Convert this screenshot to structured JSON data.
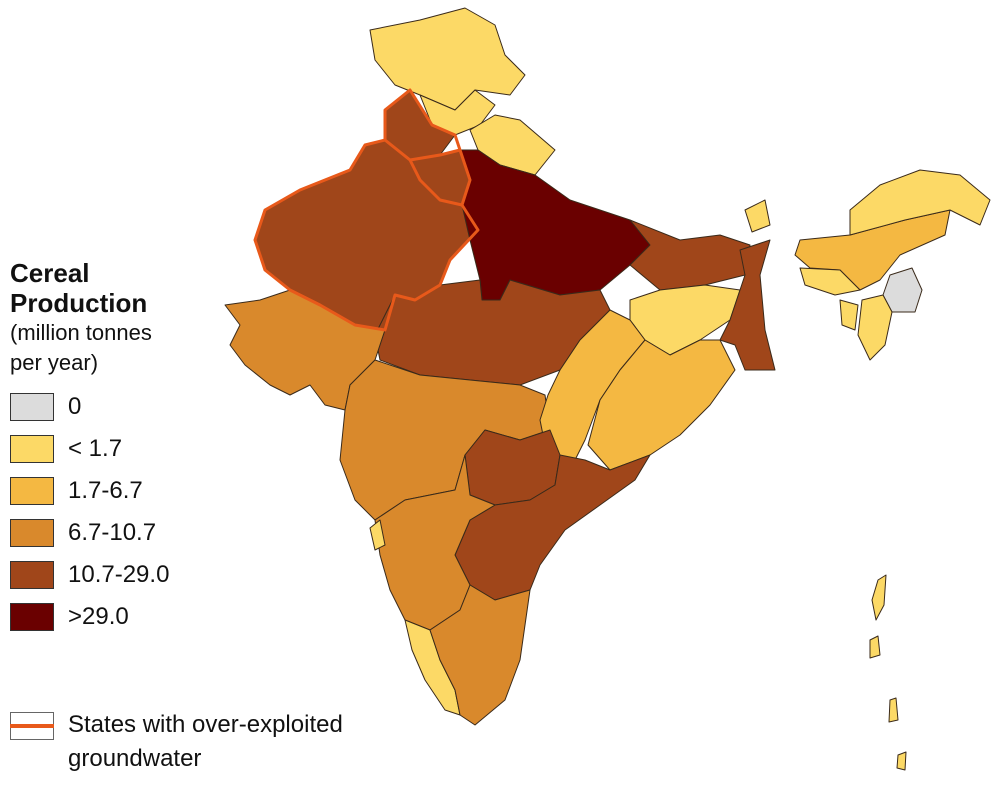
{
  "legend": {
    "title_line1": "Cereal",
    "title_line2": "Production",
    "subtitle_line1": "(million tonnes",
    "subtitle_line2": "per year)",
    "classes": [
      {
        "label": "0",
        "color": "#dcdcdc"
      },
      {
        "label": "< 1.7",
        "color": "#fcd966"
      },
      {
        "label": "1.7-6.7",
        "color": "#f4b842"
      },
      {
        "label": "6.7-10.7",
        "color": "#d9892c"
      },
      {
        "label": "10.7-29.0",
        "color": "#a0461a"
      },
      {
        "label": ">29.0",
        "color": "#6a0000"
      }
    ],
    "groundwater_label": "States with over-exploited groundwater",
    "groundwater_color": "#e8591a"
  }
}
